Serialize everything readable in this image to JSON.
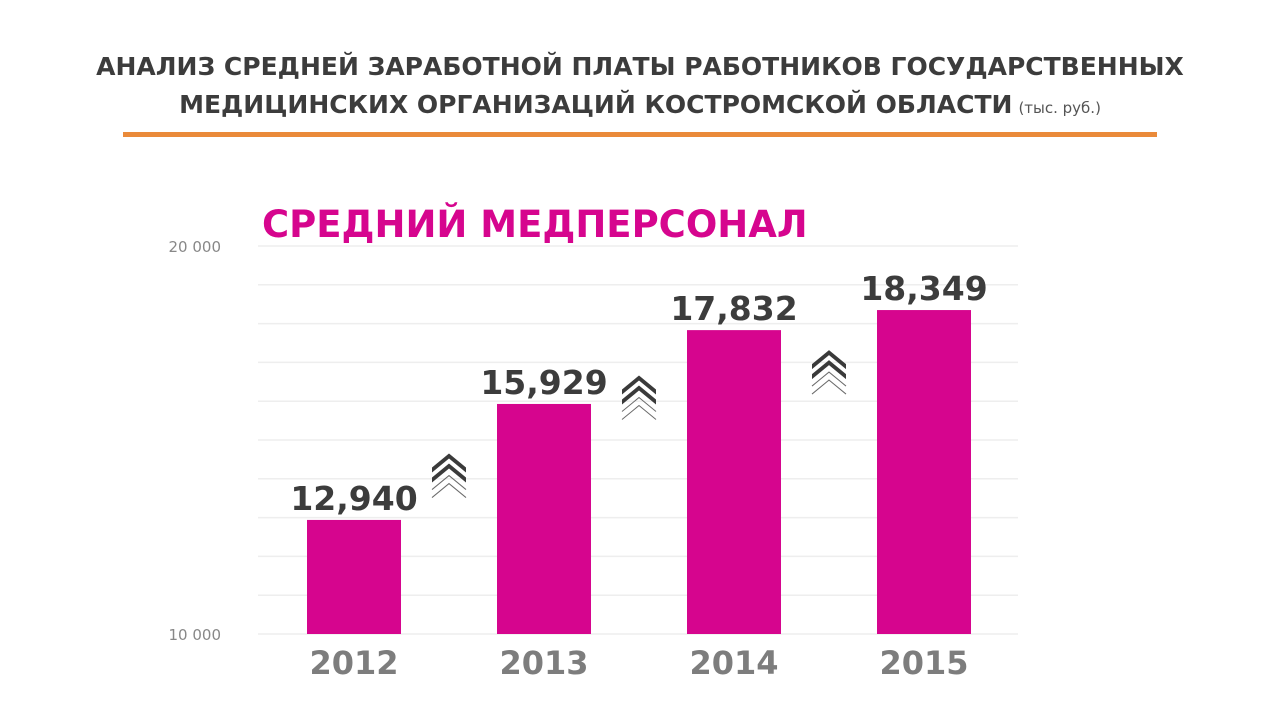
{
  "title": {
    "line1": "АНАЛИЗ СРЕДНЕЙ ЗАРАБОТНОЙ ПЛАТЫ РАБОТНИКОВ ГОСУДАРСТВЕННЫХ",
    "line2": "МЕДИЦИНСКИХ ОРГАНИЗАЦИЙ КОСТРОМСКОЙ ОБЛАСТИ",
    "unit": "(тыс. руб.)"
  },
  "colors": {
    "bar": "#d6058e",
    "accent_line": "#ea8a3a",
    "text_dark": "#3c3c3c",
    "axis_text": "#888888",
    "grid": "#eeeeee"
  },
  "chart_data": {
    "type": "bar",
    "title": "СРЕДНИЙ МЕДПЕРСОНАЛ",
    "categories": [
      "2012",
      "2013",
      "2014",
      "2015"
    ],
    "values": [
      12940,
      15929,
      17832,
      18349
    ],
    "value_labels": [
      "12,940",
      "15,929",
      "17,832",
      "18,349"
    ],
    "y_tick_labels": [
      "20 000",
      "10 000"
    ],
    "y_ticks": [
      20000,
      10000
    ],
    "ylim": [
      10000,
      20000
    ],
    "grid": true,
    "increase_arrow_icon": "double-chevron-up-icon"
  }
}
